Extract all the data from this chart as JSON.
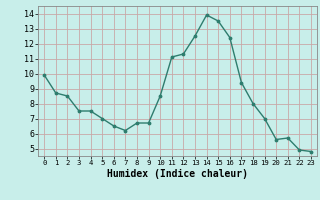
{
  "x": [
    0,
    1,
    2,
    3,
    4,
    5,
    6,
    7,
    8,
    9,
    10,
    11,
    12,
    13,
    14,
    15,
    16,
    17,
    18,
    19,
    20,
    21,
    22,
    23
  ],
  "y": [
    9.9,
    8.7,
    8.5,
    7.5,
    7.5,
    7.0,
    6.5,
    6.2,
    6.7,
    6.7,
    8.5,
    11.1,
    11.3,
    12.5,
    13.9,
    13.5,
    12.4,
    9.4,
    8.0,
    7.0,
    5.6,
    5.7,
    4.9,
    4.8
  ],
  "line_color": "#2e7d6e",
  "bg_color": "#c8eeea",
  "grid_color": "#c8a8a8",
  "xlabel": "Humidex (Indice chaleur)",
  "ylim": [
    4.5,
    14.5
  ],
  "xlim": [
    -0.5,
    23.5
  ],
  "yticks": [
    5,
    6,
    7,
    8,
    9,
    10,
    11,
    12,
    13,
    14
  ],
  "xticks": [
    0,
    1,
    2,
    3,
    4,
    5,
    6,
    7,
    8,
    9,
    10,
    11,
    12,
    13,
    14,
    15,
    16,
    17,
    18,
    19,
    20,
    21,
    22,
    23
  ],
  "label_fontsize": 7,
  "tick_fontsize": 6.5
}
